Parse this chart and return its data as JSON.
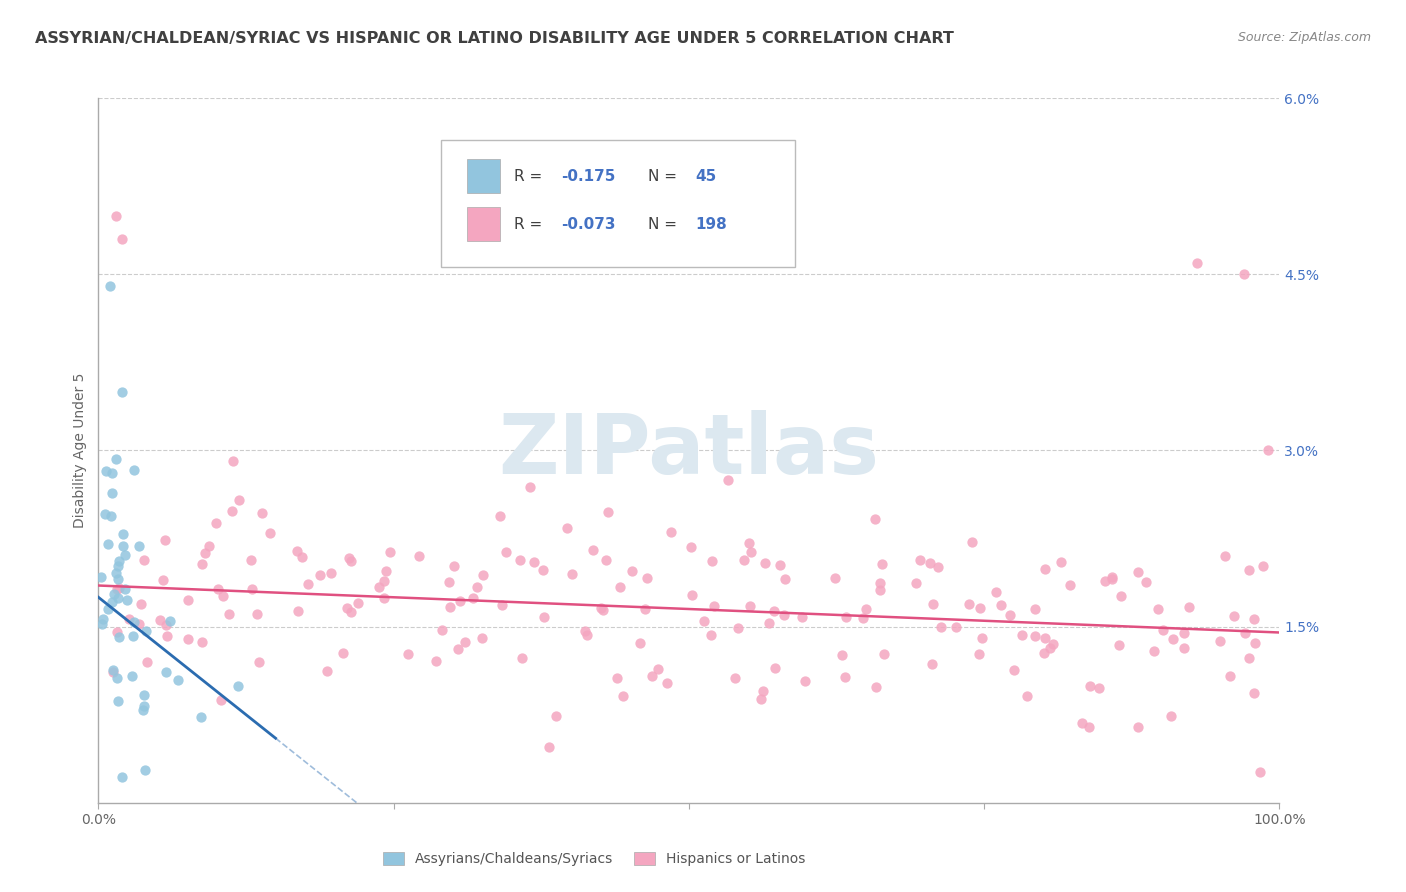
{
  "title": "ASSYRIAN/CHALDEAN/SYRIAC VS HISPANIC OR LATINO DISABILITY AGE UNDER 5 CORRELATION CHART",
  "source": "Source: ZipAtlas.com",
  "ylabel": "Disability Age Under 5",
  "xmin": 0.0,
  "xmax": 100.0,
  "ymin": 0.0,
  "ymax": 6.0,
  "yticks": [
    0.0,
    1.5,
    3.0,
    4.5,
    6.0
  ],
  "ytick_labels": [
    "",
    "1.5%",
    "3.0%",
    "4.5%",
    "6.0%"
  ],
  "blue_color": "#92c5de",
  "pink_color": "#f4a6c0",
  "blue_line_color": "#2b6cb0",
  "pink_line_color": "#e05080",
  "background_color": "#ffffff",
  "watermark_color": "#dce8f0",
  "legend_label_blue": "Assyrians/Chaldeans/Syriacs",
  "legend_label_pink": "Hispanics or Latinos",
  "title_color": "#404040",
  "source_color": "#888888",
  "tick_color": "#4472c4",
  "axis_color": "#aaaaaa",
  "grid_color": "#cccccc"
}
